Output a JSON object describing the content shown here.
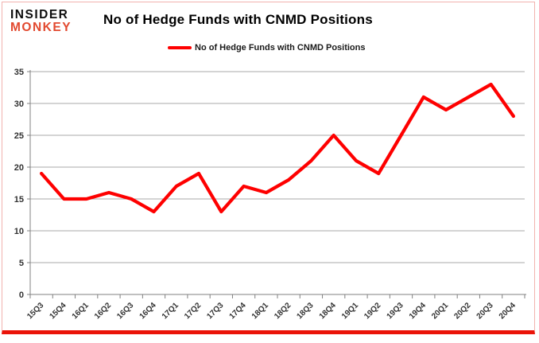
{
  "header": {
    "logo_line1": "INSIDER",
    "logo_line2": "MONKEY",
    "title": "No of Hedge Funds with CNMD Positions"
  },
  "legend": {
    "label": "No of Hedge Funds with CNMD Positions"
  },
  "colors": {
    "line": "#fe0000",
    "logo_red": "#e2492f",
    "grid": "#a8a8a8",
    "axis": "#808080",
    "axis_text": "#333333",
    "frame_border": "#f2b2ae",
    "bottom_rule": "#ea1409"
  },
  "chart_data": {
    "type": "line",
    "title": "No of Hedge Funds with CNMD Positions",
    "legend_entries": [
      "No of Hedge Funds with CNMD Positions"
    ],
    "legend_position": "top",
    "grid": true,
    "categories": [
      "15Q3",
      "15Q4",
      "16Q1",
      "16Q2",
      "16Q3",
      "16Q4",
      "17Q1",
      "17Q2",
      "17Q3",
      "17Q4",
      "18Q1",
      "18Q2",
      "18Q3",
      "18Q4",
      "19Q1",
      "19Q2",
      "19Q3",
      "19Q4",
      "20Q1",
      "20Q2",
      "20Q3",
      "20Q4"
    ],
    "series": [
      {
        "name": "No of Hedge Funds with CNMD Positions",
        "values": [
          19,
          15,
          15,
          16,
          15,
          13,
          17,
          19,
          13,
          17,
          16,
          18,
          21,
          25,
          21,
          19,
          25,
          31,
          29,
          31,
          33,
          28
        ]
      }
    ],
    "xlabel": "",
    "ylabel": "",
    "ylim": [
      0,
      35
    ],
    "ytick_step": 5,
    "yticks": [
      0,
      5,
      10,
      15,
      20,
      25,
      30,
      35
    ]
  }
}
